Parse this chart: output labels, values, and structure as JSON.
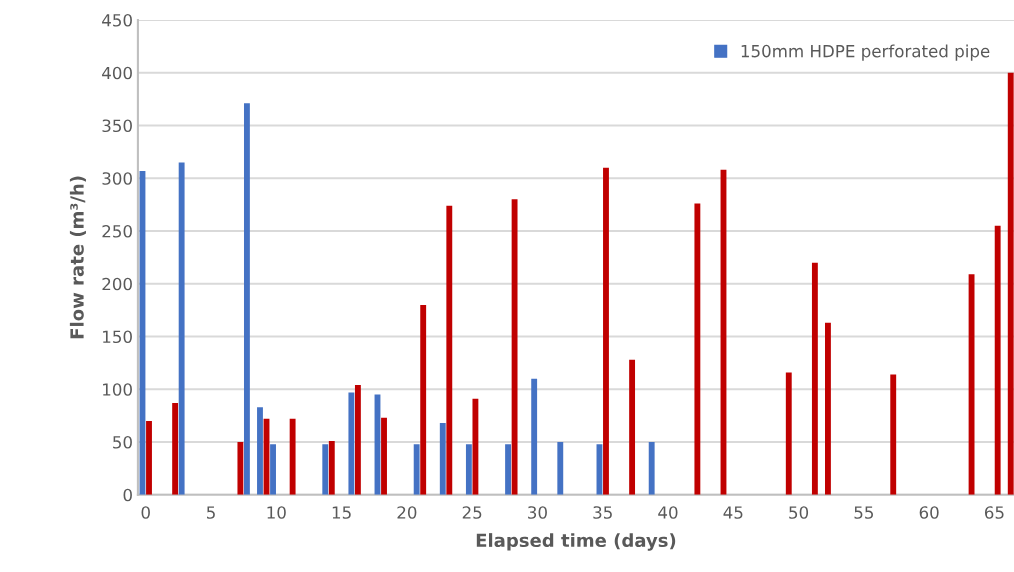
{
  "chart_data": {
    "type": "bar",
    "xlabel": "Elapsed time (days)",
    "ylabel": "Flow rate (m³/h)",
    "xlim": [
      -0.6,
      66.5
    ],
    "xticks": [
      0,
      5,
      10,
      15,
      20,
      25,
      30,
      35,
      40,
      45,
      50,
      55,
      60,
      65
    ],
    "ylim": [
      0,
      450
    ],
    "yticks": [
      0,
      50,
      100,
      150,
      200,
      250,
      300,
      350,
      400,
      450
    ],
    "grid": "y",
    "legend": "top right",
    "series": [
      {
        "name": "150mm HDPE perforated pipe",
        "color": "#4472c4",
        "x": [
          0,
          3,
          8,
          9,
          10,
          14,
          16,
          18,
          21,
          23,
          25,
          28,
          30,
          32,
          35,
          39
        ],
        "values": [
          307,
          315,
          371,
          83,
          48,
          48,
          97,
          95,
          48,
          68,
          48,
          48,
          110,
          50,
          48,
          50
        ]
      },
      {
        "color": "#c00000",
        "x": [
          0,
          2,
          7,
          9,
          11,
          14,
          16,
          18,
          21,
          23,
          25,
          28,
          35,
          37,
          42,
          44,
          49,
          51,
          52,
          57,
          63,
          65,
          66
        ],
        "values": [
          70,
          87,
          50,
          72,
          72,
          51,
          104,
          73,
          180,
          274,
          91,
          280,
          310,
          128,
          276,
          308,
          116,
          220,
          163,
          114,
          209,
          255,
          400
        ]
      }
    ]
  }
}
